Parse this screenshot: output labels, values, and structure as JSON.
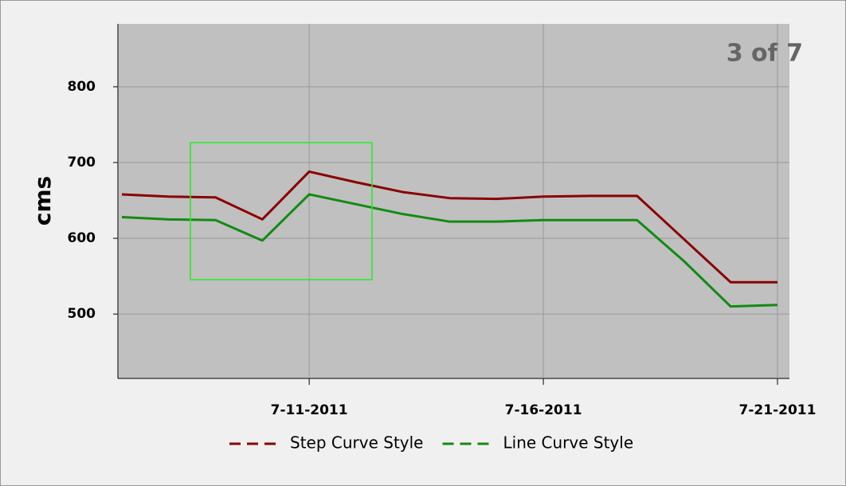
{
  "chart_data": {
    "type": "line",
    "annotation": "3 of 7",
    "y_label": "cms",
    "x": [
      "2011-07-07",
      "2011-07-08",
      "2011-07-09",
      "2011-07-10",
      "2011-07-11",
      "2011-07-12",
      "2011-07-13",
      "2011-07-14",
      "2011-07-15",
      "2011-07-16",
      "2011-07-17",
      "2011-07-18",
      "2011-07-19",
      "2011-07-20",
      "2011-07-21"
    ],
    "series": [
      {
        "name": "Step Curve Style",
        "color": "#8b0000",
        "values": [
          658,
          655,
          654,
          625,
          688,
          674,
          661,
          653,
          652,
          655,
          656,
          656,
          599,
          542,
          542
        ]
      },
      {
        "name": "Line Curve Style",
        "color": "#138a13",
        "values": [
          628,
          625,
          624,
          597,
          658,
          645,
          632,
          622,
          622,
          624,
          624,
          624,
          570,
          510,
          512
        ]
      }
    ],
    "xlim": [
      "2011-07-07",
      "2011-07-21"
    ],
    "xticks": [
      {
        "value": "2011-07-11",
        "label": "7-11-2011"
      },
      {
        "value": "2011-07-16",
        "label": "7-16-2011"
      },
      {
        "value": "2011-07-21",
        "label": "7-21-2011"
      }
    ],
    "ylim": [
      415,
      883
    ],
    "yticks": [
      500,
      600,
      700,
      800
    ],
    "grid": true,
    "legend": "bottom"
  }
}
